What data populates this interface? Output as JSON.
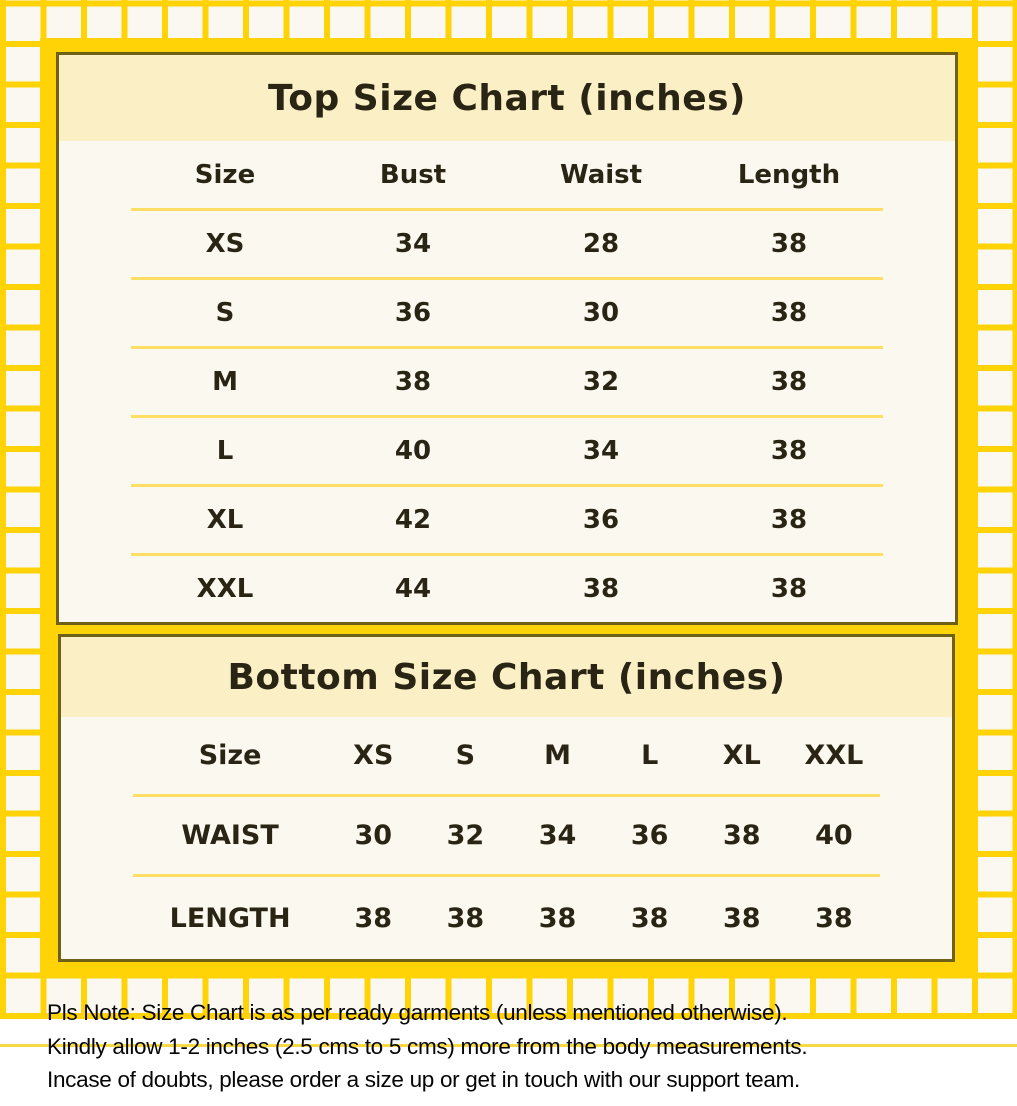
{
  "colors": {
    "grid_yellow": "#ffd306",
    "panel_border": "#6f6018",
    "title_band_cream": "#fbf0c5",
    "panel_background": "#faf8ef",
    "row_separator": "#ffdf63",
    "text_ink": "#2a2414"
  },
  "chart_data": [
    {
      "type": "table",
      "title": "Top Size Chart (inches)",
      "columns": [
        "Size",
        "Bust",
        "Waist",
        "Length"
      ],
      "rows": [
        [
          "XS",
          "34",
          "28",
          "38"
        ],
        [
          "S",
          "36",
          "30",
          "38"
        ],
        [
          "M",
          "38",
          "32",
          "38"
        ],
        [
          "L",
          "40",
          "34",
          "38"
        ],
        [
          "XL",
          "42",
          "36",
          "38"
        ],
        [
          "XXL",
          "44",
          "38",
          "38"
        ]
      ]
    },
    {
      "type": "table",
      "title": "Bottom Size Chart (inches)",
      "columns": [
        "Size",
        "XS",
        "S",
        "M",
        "L",
        "XL",
        "XXL"
      ],
      "rows": [
        [
          "WAIST",
          "30",
          "32",
          "34",
          "36",
          "38",
          "40"
        ],
        [
          "LENGTH",
          "38",
          "38",
          "38",
          "38",
          "38",
          "38"
        ]
      ]
    }
  ],
  "note": {
    "line1": "Pls Note: Size Chart is as per ready garments (unless mentioned otherwise).",
    "line2": "Kindly allow 1-2 inches (2.5 cms to 5 cms) more from the body measurements.",
    "line3": "Incase of doubts, please order a size up or get in touch with our support team."
  }
}
